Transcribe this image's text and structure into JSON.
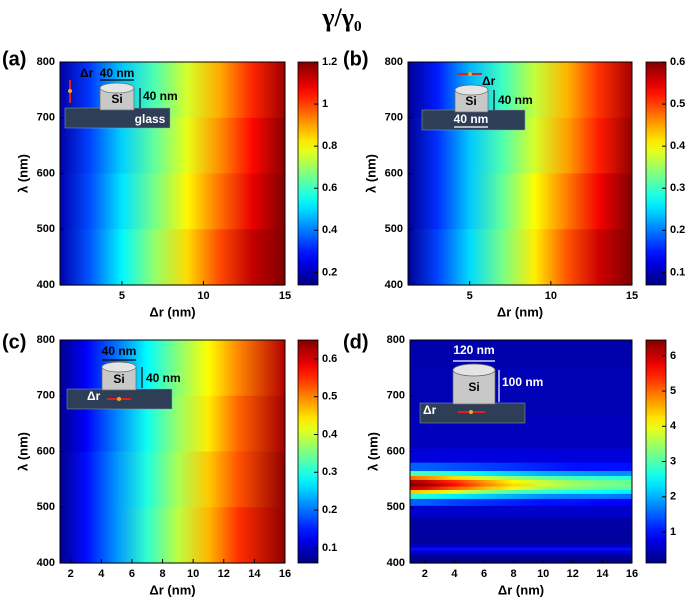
{
  "title": "γ/γ₀",
  "chart_data": [
    {
      "type": "heatmap",
      "label": "(a)",
      "xlabel": "Δr (nm)",
      "ylabel": "λ (nm)",
      "xlim": [
        1.2,
        15
      ],
      "ylim": [
        400,
        800
      ],
      "xticks": [
        5,
        10,
        15
      ],
      "yticks": [
        400,
        500,
        600,
        700,
        800
      ],
      "colormap": "jet",
      "zlim": [
        0.14,
        1.2
      ],
      "zticks": [
        0.2,
        0.4,
        0.6,
        0.8,
        1,
        1.2
      ],
      "x": [
        1.2,
        3,
        5,
        7,
        9,
        11,
        13,
        15
      ],
      "y": [
        750,
        650,
        550,
        450
      ],
      "z": [
        [
          0.18,
          0.33,
          0.48,
          0.62,
          0.76,
          0.89,
          1.03,
          1.17
        ],
        [
          0.18,
          0.34,
          0.49,
          0.64,
          0.78,
          0.92,
          1.06,
          1.19
        ],
        [
          0.19,
          0.35,
          0.51,
          0.66,
          0.81,
          0.95,
          1.09,
          1.2
        ],
        [
          0.19,
          0.36,
          0.53,
          0.69,
          0.84,
          0.99,
          1.13,
          1.2
        ]
      ],
      "annotations": [
        "Δr",
        "40 nm",
        "Si",
        "40 nm",
        "glass"
      ]
    },
    {
      "type": "heatmap",
      "label": "(b)",
      "xlabel": "Δr (nm)",
      "ylabel": "λ (nm)",
      "xlim": [
        1.2,
        15
      ],
      "ylim": [
        400,
        800
      ],
      "xticks": [
        5,
        10,
        15
      ],
      "yticks": [
        400,
        500,
        600,
        700,
        800
      ],
      "colormap": "jet",
      "zlim": [
        0.07,
        0.6
      ],
      "zticks": [
        0.1,
        0.2,
        0.3,
        0.4,
        0.5,
        0.6
      ],
      "x": [
        1.2,
        3,
        5,
        7,
        9,
        11,
        13,
        15
      ],
      "y": [
        750,
        650,
        550,
        450
      ],
      "z": [
        [
          0.08,
          0.15,
          0.23,
          0.3,
          0.37,
          0.44,
          0.51,
          0.58
        ],
        [
          0.08,
          0.16,
          0.24,
          0.31,
          0.38,
          0.45,
          0.52,
          0.59
        ],
        [
          0.08,
          0.16,
          0.24,
          0.32,
          0.4,
          0.47,
          0.54,
          0.6
        ],
        [
          0.08,
          0.17,
          0.25,
          0.33,
          0.41,
          0.49,
          0.56,
          0.6
        ]
      ],
      "annotations": [
        "Δr",
        "Si",
        "40 nm",
        "40 nm"
      ]
    },
    {
      "type": "heatmap",
      "label": "(c)",
      "xlabel": "Δr (nm)",
      "ylabel": "λ (nm)",
      "xlim": [
        1.3,
        16
      ],
      "ylim": [
        400,
        800
      ],
      "xticks": [
        2,
        4,
        6,
        8,
        10,
        12,
        14,
        16
      ],
      "yticks": [
        400,
        500,
        600,
        700,
        800
      ],
      "colormap": "jet",
      "zlim": [
        0.06,
        0.65
      ],
      "zticks": [
        0.1,
        0.2,
        0.3,
        0.4,
        0.5,
        0.6
      ],
      "x": [
        1.3,
        3,
        5,
        7,
        9,
        11,
        13,
        16
      ],
      "y": [
        750,
        650,
        550,
        450
      ],
      "z": [
        [
          0.07,
          0.13,
          0.2,
          0.28,
          0.36,
          0.43,
          0.5,
          0.62
        ],
        [
          0.07,
          0.13,
          0.21,
          0.29,
          0.37,
          0.44,
          0.52,
          0.63
        ],
        [
          0.07,
          0.14,
          0.22,
          0.3,
          0.38,
          0.46,
          0.53,
          0.64
        ],
        [
          0.07,
          0.14,
          0.22,
          0.31,
          0.39,
          0.47,
          0.55,
          0.64
        ]
      ],
      "annotations": [
        "40 nm",
        "Si",
        "40 nm",
        "Δr"
      ]
    },
    {
      "type": "heatmap",
      "label": "(d)",
      "xlabel": "Δr (nm)",
      "ylabel": "λ (nm)",
      "xlim": [
        1,
        16
      ],
      "ylim": [
        400,
        800
      ],
      "xticks": [
        2,
        4,
        6,
        8,
        10,
        12,
        14,
        16
      ],
      "yticks": [
        400,
        500,
        600,
        700,
        800
      ],
      "colormap": "jet",
      "zlim": [
        0.12,
        6.45
      ],
      "zticks": [
        1,
        2,
        3,
        4,
        5,
        6
      ],
      "x": [
        1,
        2,
        4,
        6,
        8,
        10,
        12,
        14,
        16
      ],
      "y": [
        800,
        700,
        620,
        590,
        570,
        560,
        552,
        546,
        540,
        534,
        528,
        520,
        510,
        495,
        470,
        440,
        430,
        425,
        420,
        410,
        400
      ],
      "z": [
        [
          0.4,
          0.4,
          0.4,
          0.4,
          0.4,
          0.4,
          0.4,
          0.4,
          0.4
        ],
        [
          0.45,
          0.45,
          0.45,
          0.45,
          0.45,
          0.45,
          0.45,
          0.45,
          0.45
        ],
        [
          0.5,
          0.5,
          0.5,
          0.5,
          0.5,
          0.5,
          0.5,
          0.5,
          0.5
        ],
        [
          0.7,
          0.7,
          0.7,
          0.7,
          0.7,
          0.7,
          0.7,
          0.7,
          0.7
        ],
        [
          1.5,
          1.5,
          1.4,
          1.3,
          1.2,
          1.1,
          1,
          1,
          1
        ],
        [
          3,
          2.9,
          2.7,
          2.4,
          2.2,
          2,
          1.9,
          1.8,
          1.8
        ],
        [
          5,
          4.8,
          4.3,
          3.8,
          3.4,
          3.1,
          2.9,
          2.8,
          2.7
        ],
        [
          6.2,
          6,
          5.4,
          4.7,
          4.1,
          3.7,
          3.4,
          3.2,
          3.1
        ],
        [
          6.4,
          6.3,
          5.6,
          4.9,
          4.3,
          3.8,
          3.5,
          3.3,
          3.2
        ],
        [
          6,
          5.8,
          5.1,
          4.5,
          4,
          3.5,
          3.3,
          3.1,
          3
        ],
        [
          4.5,
          4.3,
          3.9,
          3.4,
          3,
          2.8,
          2.6,
          2.5,
          2.4
        ],
        [
          2.8,
          2.7,
          2.4,
          2.2,
          2,
          1.8,
          1.7,
          1.7,
          1.6
        ],
        [
          1.5,
          1.5,
          1.3,
          1.2,
          1.1,
          1,
          1,
          0.9,
          0.9
        ],
        [
          0.6,
          0.6,
          0.6,
          0.6,
          0.6,
          0.6,
          0.6,
          0.6,
          0.6
        ],
        [
          0.35,
          0.35,
          0.35,
          0.35,
          0.35,
          0.35,
          0.35,
          0.35,
          0.35
        ],
        [
          0.3,
          0.3,
          0.3,
          0.3,
          0.3,
          0.3,
          0.3,
          0.3,
          0.3
        ],
        [
          0.5,
          0.5,
          0.5,
          0.5,
          0.5,
          0.5,
          0.5,
          0.5,
          0.5
        ],
        [
          1,
          1,
          1,
          1,
          1,
          1,
          1,
          1,
          1
        ],
        [
          0.6,
          0.6,
          0.6,
          0.6,
          0.6,
          0.6,
          0.6,
          0.6,
          0.6
        ],
        [
          0.25,
          0.25,
          0.25,
          0.25,
          0.25,
          0.25,
          0.25,
          0.25,
          0.25
        ],
        [
          0.2,
          0.2,
          0.2,
          0.2,
          0.2,
          0.2,
          0.2,
          0.2,
          0.2
        ]
      ],
      "annotations": [
        "120 nm",
        "Si",
        "100 nm",
        "Δr"
      ]
    }
  ]
}
